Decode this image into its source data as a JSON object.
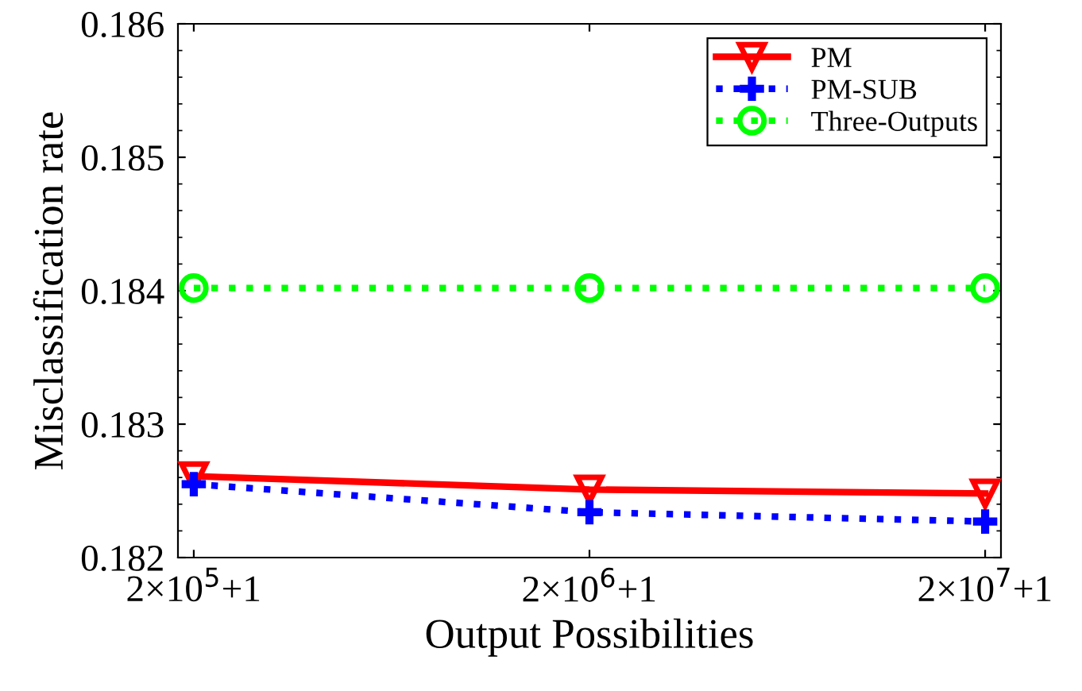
{
  "chart_data": {
    "type": "line",
    "xlabel": "Output Possibilities",
    "ylabel": "Misclassification rate",
    "categories": [
      "2×10$^{5}$+1",
      "2×10$^{6}$+1",
      "2×10$^{7}$+1"
    ],
    "series": [
      {
        "name": "PM",
        "color": "#ff0000",
        "values": [
          0.18261,
          0.18251,
          0.18248
        ],
        "marker": "triangle",
        "line_style": "solid"
      },
      {
        "name": "PM-SUB",
        "color": "#0000ff",
        "values": [
          0.18255,
          0.18234,
          0.18227
        ],
        "marker": "cross",
        "line_style": "dotted"
      },
      {
        "name": "Three-Outputs",
        "color": "#00ff00",
        "values": [
          0.18402,
          0.18402,
          0.18402
        ],
        "marker": "circle",
        "line_style": "dotted"
      }
    ],
    "ylim": [
      0.182,
      0.186
    ],
    "yticks": [
      0.182,
      0.183,
      0.184,
      0.185,
      0.186
    ],
    "grid": false,
    "legend": "top right"
  }
}
